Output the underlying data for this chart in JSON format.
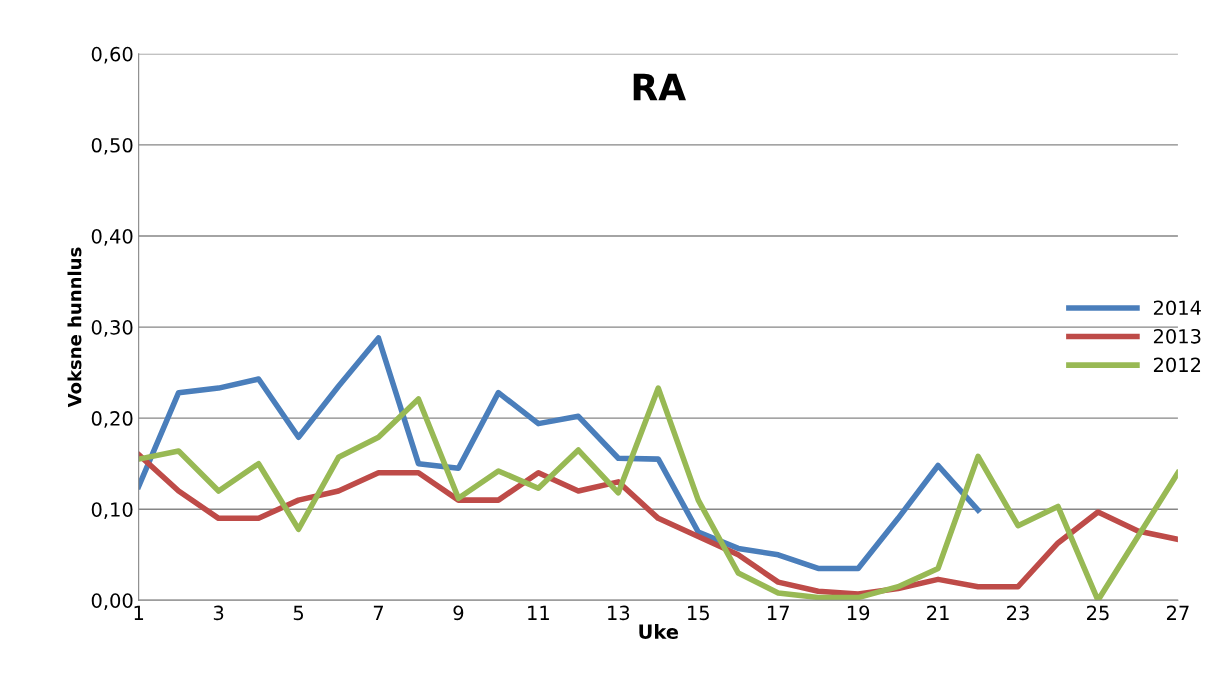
{
  "chart_data": {
    "type": "line",
    "title": "RA",
    "xlabel": "Uke",
    "ylabel": "Voksne hunnlus",
    "x": [
      1,
      2,
      3,
      4,
      5,
      6,
      7,
      8,
      9,
      10,
      11,
      12,
      13,
      14,
      15,
      16,
      17,
      18,
      19,
      20,
      21,
      22,
      23,
      24,
      25,
      26,
      27
    ],
    "series": [
      {
        "name": "2014",
        "color": "#4a7ebb",
        "values": [
          0.125,
          0.228,
          0.233,
          0.243,
          0.179,
          0.235,
          0.288,
          0.15,
          0.145,
          0.228,
          0.194,
          0.202,
          0.156,
          0.155,
          0.075,
          0.057,
          0.05,
          0.035,
          0.035,
          0.09,
          0.148,
          0.099,
          null,
          null,
          null,
          null,
          null
        ]
      },
      {
        "name": "2013",
        "color": "#be4b48",
        "values": [
          0.16,
          0.12,
          0.09,
          0.09,
          0.11,
          0.12,
          0.14,
          0.14,
          0.11,
          0.11,
          0.14,
          0.12,
          0.13,
          0.09,
          0.07,
          0.05,
          0.02,
          0.01,
          0.007,
          0.013,
          0.023,
          0.015,
          0.015,
          0.063,
          0.097,
          0.076,
          0.067
        ]
      },
      {
        "name": "2012",
        "color": "#98b954",
        "values": [
          0.155,
          0.164,
          0.12,
          0.15,
          0.078,
          0.157,
          0.179,
          0.221,
          0.112,
          0.142,
          0.123,
          0.165,
          0.118,
          0.233,
          0.11,
          0.03,
          0.008,
          0.003,
          0.003,
          0.015,
          0.035,
          0.158,
          0.082,
          0.103,
          0.0,
          0.07,
          0.14
        ]
      }
    ],
    "xlim": [
      1,
      27
    ],
    "xticks": [
      1,
      3,
      5,
      7,
      9,
      11,
      13,
      15,
      17,
      19,
      21,
      23,
      25,
      27
    ],
    "ylim": [
      0,
      0.6
    ],
    "yticks": [
      {
        "value": 0,
        "label": "0,00"
      },
      {
        "value": 0.1,
        "label": "0,10"
      },
      {
        "value": 0.2,
        "label": "0,20"
      },
      {
        "value": 0.3,
        "label": "0,30"
      },
      {
        "value": 0.4,
        "label": "0,40"
      },
      {
        "value": 0.5,
        "label": "0,50"
      },
      {
        "value": 0.6,
        "label": "0,60"
      }
    ],
    "grid": "y",
    "legend": "right",
    "marker": "none",
    "line_style": "solid"
  }
}
